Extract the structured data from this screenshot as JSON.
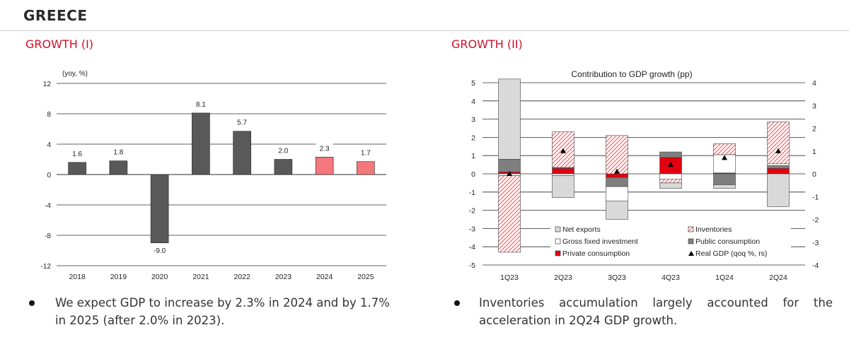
{
  "header": {
    "country": "GREECE"
  },
  "left": {
    "title": "GROWTH (I)",
    "bullet": "We expect GDP to increase by 2.3% in 2024 and by 1.7% in 2025 (after 2.0% in 2023).",
    "bullet_line1": "We expect GDP to increase by 2.3% in 2024 and by 1.7%",
    "bullet_line2": "in 2025 (after 2.0% in 2023).",
    "bar_colors": {
      "actual": "#595959",
      "forecast": "#f4777c"
    }
  },
  "right": {
    "title": "GROWTH (II)",
    "bullet": "Inventories accumulation largely accounted for the acceleration in 2Q24 GDP growth.",
    "bullet_line1": "Inventories accumulation largely accounted for the",
    "bullet_line2": "acceleration in 2Q24 GDP growth."
  },
  "chart_data": [
    {
      "type": "bar",
      "unit_label": "(yoy, %)",
      "categories": [
        "2018",
        "2019",
        "2020",
        "2021",
        "2022",
        "2023",
        "2024",
        "2025"
      ],
      "values": [
        1.6,
        1.8,
        -9.0,
        8.1,
        5.7,
        2.0,
        2.3,
        1.7
      ],
      "value_labels": [
        "1.6",
        "1.8",
        "-9.0",
        "8.1",
        "5.7",
        "2.0",
        "2.3",
        "1.7"
      ],
      "forecast": [
        false,
        false,
        false,
        false,
        false,
        false,
        true,
        true
      ],
      "ylim": [
        -12,
        12
      ],
      "yticks": [
        -12,
        -8,
        -4,
        0,
        4,
        8,
        12
      ],
      "ytick_labels": [
        "-12",
        "-8",
        "-4",
        "0",
        "4",
        "8",
        "12"
      ],
      "grid": true
    },
    {
      "type": "bar",
      "stacked": true,
      "title": "Contribution to GDP growth (pp)",
      "categories": [
        "1Q23",
        "2Q23",
        "3Q23",
        "4Q23",
        "1Q24",
        "2Q24"
      ],
      "series": [
        {
          "name": "Net exports",
          "key": "net",
          "color": "#d9d9d9",
          "values": [
            4.4,
            -1.2,
            -1.0,
            -0.3,
            -0.2,
            -1.8
          ]
        },
        {
          "name": "Gross fixed investment",
          "key": "gfi",
          "color": "#ffffff",
          "values": [
            -0.1,
            -0.1,
            -0.8,
            -0.3,
            1.0,
            0.1
          ]
        },
        {
          "name": "Private consumption",
          "key": "pc",
          "color": "#e3000f",
          "values": [
            0.1,
            0.3,
            -0.2,
            0.9,
            0.05,
            0.3
          ]
        },
        {
          "name": "Public consumption",
          "key": "pub",
          "color": "#7f7f7f",
          "values": [
            0.7,
            0.05,
            -0.5,
            0.3,
            -0.6,
            0.15
          ]
        },
        {
          "name": "Inventories",
          "key": "inv",
          "color": "#f4777c",
          "values": [
            -4.2,
            1.95,
            2.1,
            -0.2,
            0.6,
            2.3
          ]
        }
      ],
      "real_gdp": {
        "name": "Real GDP (qoq %, rs)",
        "values": [
          0.0,
          1.0,
          0.1,
          0.4,
          0.7,
          1.0
        ]
      },
      "legend": {
        "placement": "bottom-right",
        "items": [
          {
            "label": "Net exports",
            "key": "net"
          },
          {
            "label": "Inventories",
            "key": "inv"
          },
          {
            "label": "Gross fixed investment",
            "key": "gfi"
          },
          {
            "label": "Public consumption",
            "key": "pub"
          },
          {
            "label": "Private consumption",
            "key": "pc"
          },
          {
            "label": "Real GDP (qoq %, rs)",
            "key": "gdp"
          }
        ]
      },
      "ylim_left": [
        -5,
        5
      ],
      "yticks_left": [
        -5,
        -4,
        -3,
        -2,
        -1,
        0,
        1,
        2,
        3,
        4,
        5
      ],
      "ytick_labels_left": [
        "-5",
        "-4",
        "-3",
        "-2",
        "-1",
        "0",
        "1",
        "2",
        "3",
        "4",
        "5"
      ],
      "ylim_right": [
        -4,
        4
      ],
      "yticks_right": [
        -4,
        -3,
        -2,
        -1,
        0,
        1,
        2,
        3,
        4
      ],
      "ytick_labels_right": [
        "-4",
        "-3",
        "-2",
        "-1",
        "0",
        "1",
        "2",
        "3",
        "4"
      ],
      "grid": true
    }
  ]
}
